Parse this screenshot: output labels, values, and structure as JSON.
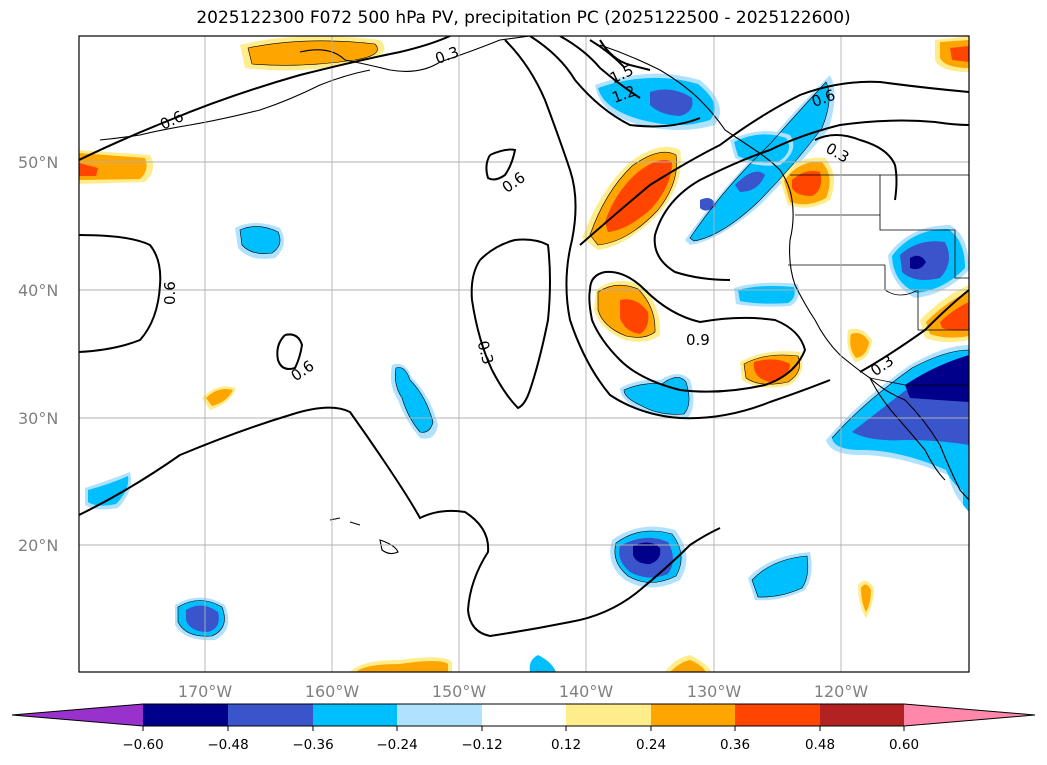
{
  "title": "2025122300 F072 500 hPa PV, precipitation PC (2025122500 - 2025122600)",
  "lat_labels": [
    "50°N",
    "40°N",
    "30°N",
    "20°N"
  ],
  "lon_labels": [
    "170°W",
    "160°W",
    "150°W",
    "140°W",
    "130°W",
    "120°W"
  ],
  "contour_labels": [
    "0.6",
    "0.3",
    "1.5",
    "1.2",
    "0.6",
    "0.3",
    "0.6",
    "0.6",
    "0.6",
    "0.3",
    "0.9",
    "0.3"
  ],
  "colorbar": {
    "tick_labels": [
      "−0.60",
      "−0.48",
      "−0.36",
      "−0.24",
      "−0.12",
      "0.12",
      "0.24",
      "0.36",
      "0.48",
      "0.60"
    ],
    "colors": [
      "#9932cc",
      "#00008b",
      "#3a55cc",
      "#00bfff",
      "#b0e2ff",
      "#ffffff",
      "#ffec8b",
      "#ffa500",
      "#ff4500",
      "#b22222",
      "#ff88aa"
    ]
  },
  "shading_colors": {
    "neg_light": "#b0e2ff",
    "neg_mid": "#00bfff",
    "neg_dark": "#3a55cc",
    "neg_darkest": "#00008b",
    "pos_light": "#ffec8b",
    "pos_mid": "#ffa500",
    "pos_dark": "#ff4500"
  }
}
